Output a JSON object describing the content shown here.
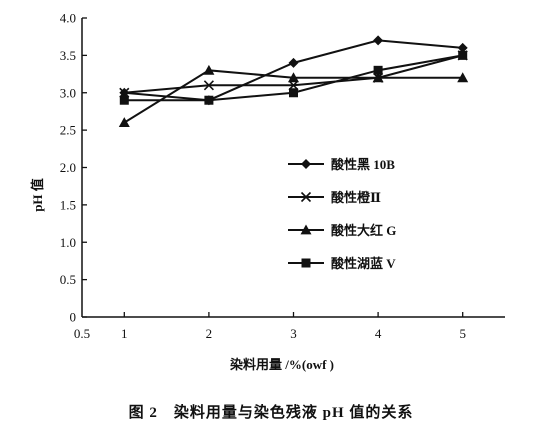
{
  "chart_data": {
    "type": "line",
    "xlabel": "染料用量 /%(owf )",
    "ylabel": "pH 值",
    "xlim": [
      0.5,
      5.5
    ],
    "ylim": [
      0,
      4.0
    ],
    "xticks": [
      {
        "value": 0.5,
        "label": "0.5"
      },
      {
        "value": 1,
        "label": "1"
      },
      {
        "value": 2,
        "label": "2"
      },
      {
        "value": 3,
        "label": "3"
      },
      {
        "value": 4,
        "label": "4"
      },
      {
        "value": 5,
        "label": "5"
      }
    ],
    "yticks": [
      {
        "value": 0,
        "label": "0"
      },
      {
        "value": 0.5,
        "label": "0.5"
      },
      {
        "value": 1.0,
        "label": "1.0"
      },
      {
        "value": 1.5,
        "label": "1.5"
      },
      {
        "value": 2.0,
        "label": "2.0"
      },
      {
        "value": 2.5,
        "label": "2.5"
      },
      {
        "value": 3.0,
        "label": "3.0"
      },
      {
        "value": 3.5,
        "label": "3.5"
      },
      {
        "value": 4.0,
        "label": "4.0"
      }
    ],
    "x": [
      1,
      2,
      3,
      4,
      5
    ],
    "series": [
      {
        "name": "酸性黑 10B",
        "marker": "diamond",
        "values": [
          3.0,
          2.9,
          3.4,
          3.7,
          3.6
        ]
      },
      {
        "name": "酸性橙Ⅱ",
        "marker": "x",
        "values": [
          3.0,
          3.1,
          3.1,
          3.2,
          3.5
        ]
      },
      {
        "name": "酸性大红 G",
        "marker": "triangle",
        "values": [
          2.6,
          3.3,
          3.2,
          3.2,
          3.2
        ]
      },
      {
        "name": "酸性湖蓝 V",
        "marker": "square",
        "values": [
          2.9,
          2.9,
          3.0,
          3.3,
          3.5
        ]
      }
    ],
    "legend_position": "right",
    "grid": false,
    "color": "#111111"
  },
  "caption": "图 2　染料用量与染色残液 pH 值的关系"
}
